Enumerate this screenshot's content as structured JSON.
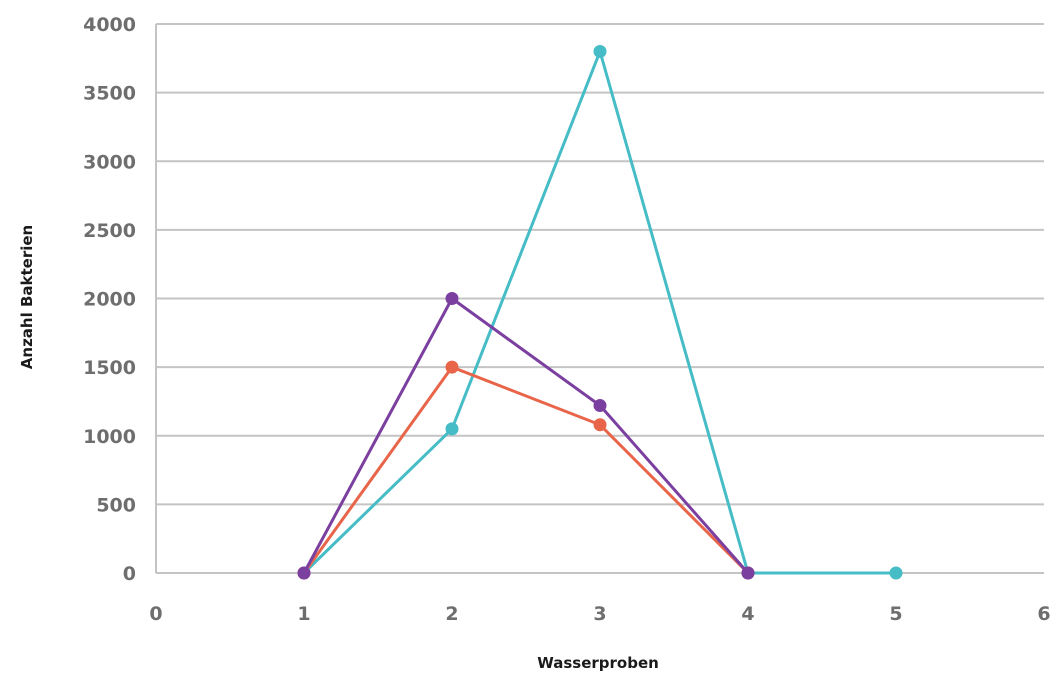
{
  "chart_data": {
    "type": "scatter",
    "title": "",
    "xlabel": "Wasserproben",
    "ylabel": "Anzahl Bakterien",
    "xlim": [
      0,
      6
    ],
    "ylim": [
      0,
      4000
    ],
    "x_ticks": [
      0,
      1,
      2,
      3,
      4,
      5,
      6
    ],
    "y_ticks": [
      0,
      500,
      1000,
      1500,
      2000,
      2500,
      3000,
      3500,
      4000
    ],
    "grid": "horizontal",
    "legend": "none",
    "series": [
      {
        "color": "#46bcc6",
        "x": [
          1,
          2,
          3,
          4,
          5
        ],
        "values": [
          0,
          1050,
          3800,
          0,
          0
        ]
      },
      {
        "color": "#e8654a",
        "x": [
          1,
          2,
          3,
          4
        ],
        "values": [
          0,
          1500,
          1080,
          0
        ]
      },
      {
        "color": "#7b3fa0",
        "x": [
          1,
          2,
          3,
          4
        ],
        "values": [
          0,
          2000,
          1220,
          0
        ]
      }
    ]
  }
}
